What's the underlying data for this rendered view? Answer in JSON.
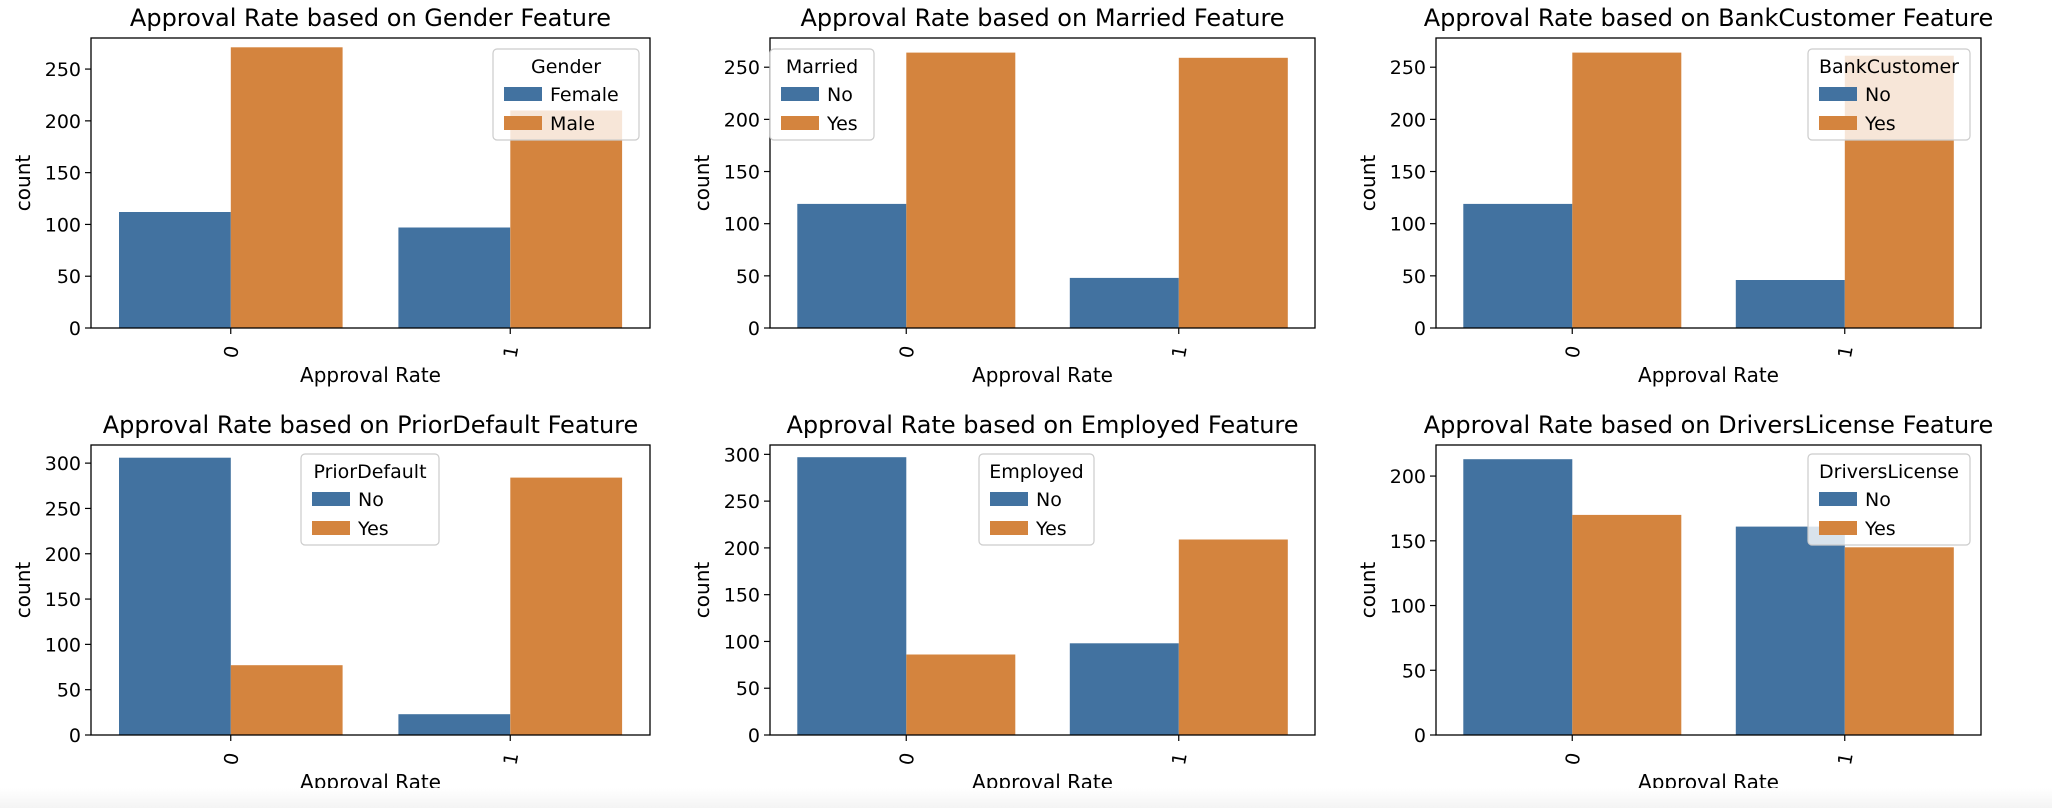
{
  "colors": {
    "series_0": "#4272a0",
    "series_1": "#d4843e",
    "axis": "#000000",
    "text": "#000000"
  },
  "chart_data": [
    {
      "type": "bar",
      "title": "Approval Rate based on Gender Feature",
      "xlabel": "Approval Rate",
      "ylabel": "count",
      "categories": [
        "0",
        "1"
      ],
      "ylim": [
        0,
        280
      ],
      "yticks": [
        0,
        50,
        100,
        150,
        200,
        250
      ],
      "legend": {
        "title": "Gender",
        "position": "top-right"
      },
      "series": [
        {
          "name": "Female",
          "values": [
            112,
            97
          ]
        },
        {
          "name": "Male",
          "values": [
            271,
            210
          ]
        }
      ]
    },
    {
      "type": "bar",
      "title": "Approval Rate based on Married Feature",
      "xlabel": "Approval Rate",
      "ylabel": "count",
      "categories": [
        "0",
        "1"
      ],
      "ylim": [
        0,
        278
      ],
      "yticks": [
        0,
        50,
        100,
        150,
        200,
        250
      ],
      "legend": {
        "title": "Married",
        "position": "top-left"
      },
      "series": [
        {
          "name": "No",
          "values": [
            119,
            48
          ]
        },
        {
          "name": "Yes",
          "values": [
            264,
            259
          ]
        }
      ]
    },
    {
      "type": "bar",
      "title": "Approval Rate based on BankCustomer Feature",
      "xlabel": "Approval Rate",
      "ylabel": "count",
      "categories": [
        "0",
        "1"
      ],
      "ylim": [
        0,
        278
      ],
      "yticks": [
        0,
        50,
        100,
        150,
        200,
        250
      ],
      "legend": {
        "title": "BankCustomer",
        "position": "top-right"
      },
      "series": [
        {
          "name": "No",
          "values": [
            119,
            46
          ]
        },
        {
          "name": "Yes",
          "values": [
            264,
            261
          ]
        }
      ]
    },
    {
      "type": "bar",
      "title": "Approval Rate based on PriorDefault Feature",
      "xlabel": "Approval Rate",
      "ylabel": "count",
      "categories": [
        "0",
        "1"
      ],
      "ylim": [
        0,
        320
      ],
      "yticks": [
        0,
        50,
        100,
        150,
        200,
        250,
        300
      ],
      "legend": {
        "title": "PriorDefault",
        "position": "upper-center"
      },
      "series": [
        {
          "name": "No",
          "values": [
            306,
            23
          ]
        },
        {
          "name": "Yes",
          "values": [
            77,
            284
          ]
        }
      ]
    },
    {
      "type": "bar",
      "title": "Approval Rate based on Employed Feature",
      "xlabel": "Approval Rate",
      "ylabel": "count",
      "categories": [
        "0",
        "1"
      ],
      "ylim": [
        0,
        310
      ],
      "yticks": [
        0,
        50,
        100,
        150,
        200,
        250,
        300
      ],
      "legend": {
        "title": "Employed",
        "position": "upper-center"
      },
      "series": [
        {
          "name": "No",
          "values": [
            297,
            98
          ]
        },
        {
          "name": "Yes",
          "values": [
            86,
            209
          ]
        }
      ]
    },
    {
      "type": "bar",
      "title": "Approval Rate based on DriversLicense Feature",
      "xlabel": "Approval Rate",
      "ylabel": "count",
      "categories": [
        "0",
        "1"
      ],
      "ylim": [
        0,
        224
      ],
      "yticks": [
        0,
        50,
        100,
        150,
        200
      ],
      "legend": {
        "title": "DriversLicense",
        "position": "top-right"
      },
      "series": [
        {
          "name": "No",
          "values": [
            213,
            161
          ]
        },
        {
          "name": "Yes",
          "values": [
            170,
            145
          ]
        }
      ]
    }
  ]
}
